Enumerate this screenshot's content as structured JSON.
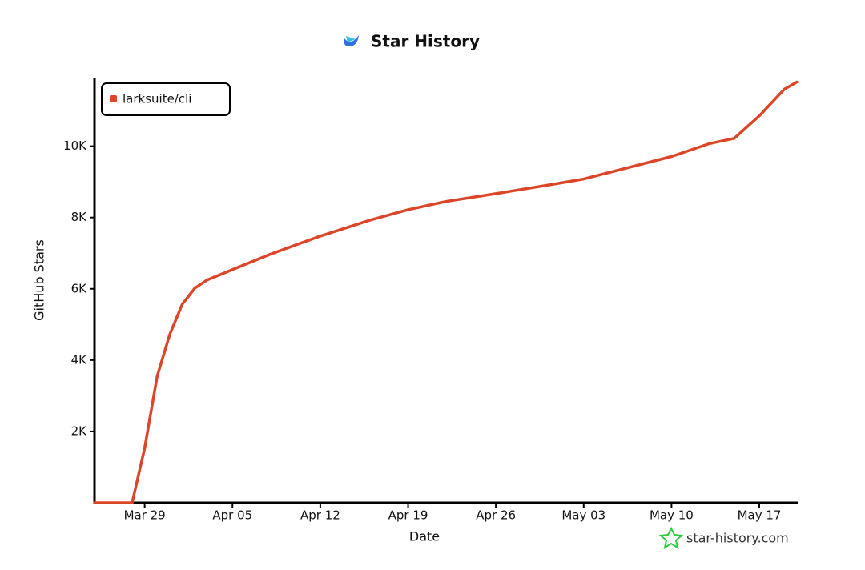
{
  "chart_data": {
    "type": "line",
    "title": "Star History",
    "x_label": "Date",
    "y_label": "GitHub Stars",
    "watermark": "star-history.com",
    "x": [
      "Mar 25",
      "Mar 28",
      "Mar 29",
      "Mar 30",
      "Mar 31",
      "Apr 1",
      "Apr 2",
      "Apr 3",
      "Apr 5",
      "Apr 8",
      "Apr 12",
      "Apr 16",
      "Apr 19",
      "Apr 22",
      "Apr 26",
      "Apr 30",
      "May 03",
      "May 07",
      "May 10",
      "May 13",
      "May 15",
      "May 17",
      "May 19",
      "May 20"
    ],
    "series": [
      {
        "name": "larksuite/cli",
        "color": "#dd4528",
        "values": [
          0,
          0,
          1530,
          3550,
          4720,
          5570,
          6020,
          6250,
          6540,
          6970,
          7480,
          7930,
          8220,
          8450,
          8670,
          8900,
          9080,
          9440,
          9710,
          10070,
          10220,
          10850,
          11600,
          11800
        ]
      }
    ],
    "xlim": [
      "Mar 25",
      "May 20"
    ],
    "xticks": [
      "Mar 29",
      "Apr 05",
      "Apr 12",
      "Apr 19",
      "Apr 26",
      "May 03",
      "May 10",
      "May 17"
    ],
    "ylim": [
      0,
      11900
    ],
    "yticks": [
      {
        "value": 2000,
        "label": "2K"
      },
      {
        "value": 4000,
        "label": "4K"
      },
      {
        "value": 6000,
        "label": "6K"
      },
      {
        "value": 8000,
        "label": "8K"
      },
      {
        "value": 10000,
        "label": "10K"
      }
    ],
    "legend": "upper left",
    "grid": false
  }
}
